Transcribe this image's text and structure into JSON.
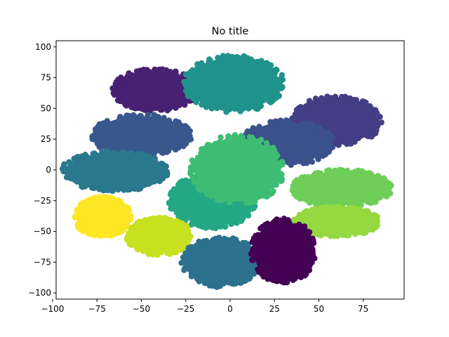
{
  "chart_data": {
    "type": "scatter",
    "title": "No title",
    "xlabel": "",
    "ylabel": "",
    "xlim": [
      -98,
      98
    ],
    "ylim": [
      -105,
      105
    ],
    "x_ticks": [
      -100,
      -75,
      -50,
      -25,
      0,
      25,
      50,
      75
    ],
    "y_ticks": [
      -100,
      -75,
      -50,
      -25,
      0,
      25,
      50,
      75,
      100
    ],
    "grid": false,
    "legend": "none",
    "clusters": [
      {
        "cx": -42,
        "cy": 65,
        "rx": 24,
        "ry": 17,
        "color": "#482173"
      },
      {
        "cx": 60,
        "cy": 40,
        "rx": 25,
        "ry": 20,
        "color": "#433e85"
      },
      {
        "cx": -50,
        "cy": 28,
        "rx": 28,
        "ry": 17,
        "color": "#38588c"
      },
      {
        "cx": 32,
        "cy": 22,
        "rx": 26,
        "ry": 18,
        "color": "#3b518b"
      },
      {
        "cx": -65,
        "cy": -1,
        "rx": 30,
        "ry": 16,
        "color": "#2a788e"
      },
      {
        "cx": 2,
        "cy": 70,
        "rx": 28,
        "ry": 23,
        "color": "#20928c"
      },
      {
        "cx": -10,
        "cy": -25,
        "rx": 24,
        "ry": 22,
        "color": "#22a884"
      },
      {
        "cx": 4,
        "cy": 0,
        "rx": 26,
        "ry": 28,
        "color": "#3fbc73"
      },
      {
        "cx": 63,
        "cy": -15,
        "rx": 28,
        "ry": 15,
        "color": "#6ece58"
      },
      {
        "cx": 60,
        "cy": -42,
        "rx": 24,
        "ry": 12,
        "color": "#95d840"
      },
      {
        "cx": -40,
        "cy": -54,
        "rx": 18,
        "ry": 15,
        "color": "#c8e020"
      },
      {
        "cx": -72,
        "cy": -38,
        "rx": 16,
        "ry": 16,
        "color": "#fde725"
      },
      {
        "cx": -5,
        "cy": -75,
        "rx": 22,
        "ry": 20,
        "color": "#2c718e"
      },
      {
        "cx": 30,
        "cy": -66,
        "rx": 18,
        "ry": 26,
        "color": "#440154"
      }
    ]
  }
}
